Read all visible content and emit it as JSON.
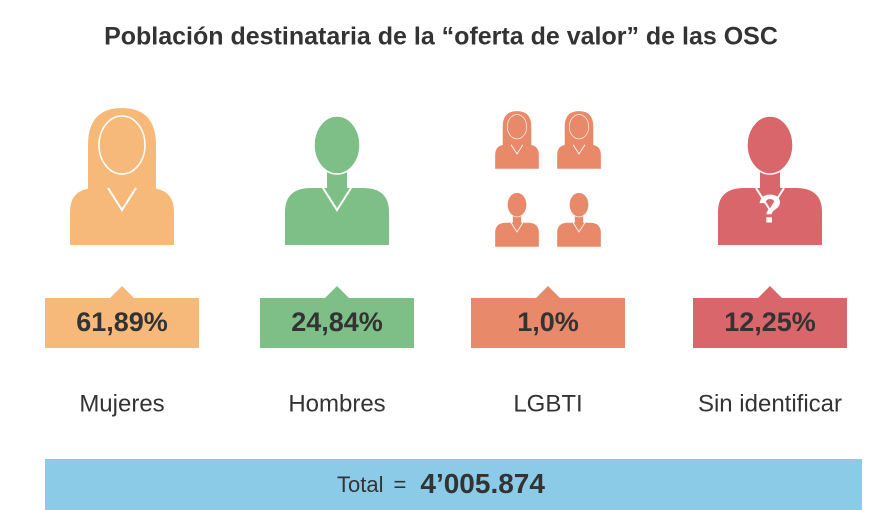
{
  "title": "Población destinataria de la “oferta de valor” de las OSC",
  "items": [
    {
      "label": "Mujeres",
      "value": "61,89%",
      "color": "#f7b97a",
      "icon": "woman"
    },
    {
      "label": "Hombres",
      "value": "24,84%",
      "color": "#7dbf86",
      "icon": "man"
    },
    {
      "label": "LGBTI",
      "value": "1,0%",
      "color": "#e8896a",
      "icon": "group"
    },
    {
      "label": "Sin identificar",
      "value": "12,25%",
      "color": "#d9666a",
      "icon": "unknown",
      "icon_text": "?"
    }
  ],
  "total": {
    "label": "Total",
    "sign": "=",
    "value": "4’005.874",
    "color": "#8ccbe8"
  }
}
